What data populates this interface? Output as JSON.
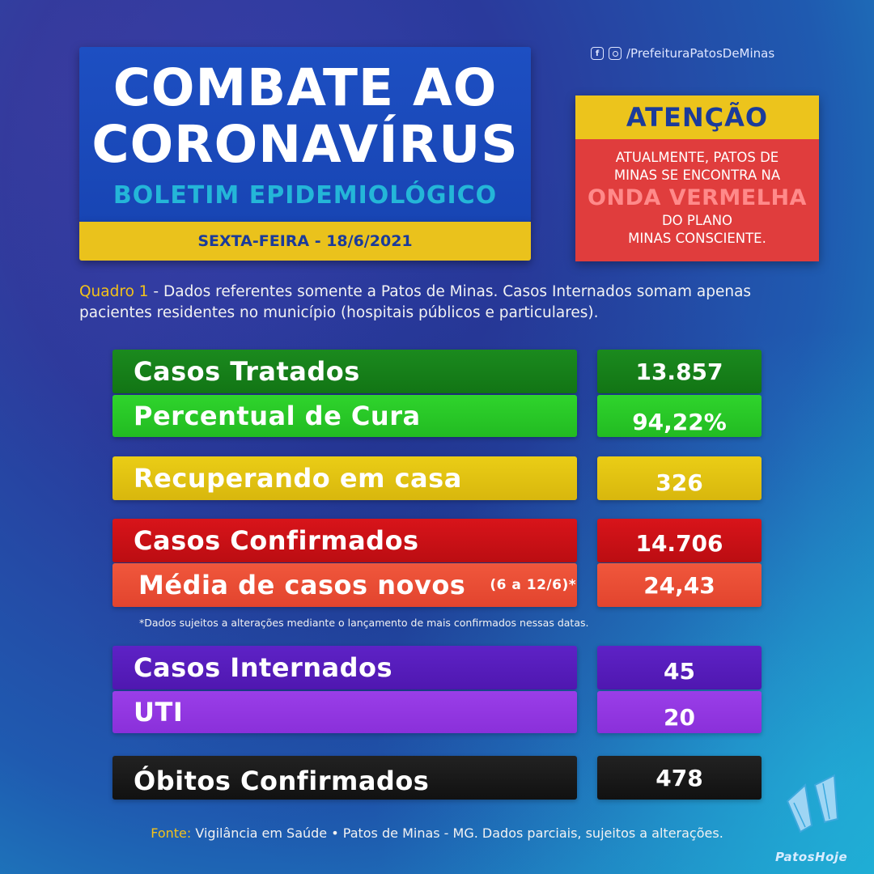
{
  "header": {
    "title_line1": "COMBATE AO",
    "title_line2": "CORONAVÍRUS",
    "subtitle": "BOLETIM EPIDEMIOLÓGICO",
    "date": "SEXTA-FEIRA - 18/6/2021"
  },
  "social": {
    "icons": [
      "facebook-icon",
      "instagram-icon"
    ],
    "handle": "/PrefeituraPatosDeMinas"
  },
  "attention": {
    "heading": "ATENÇÃO",
    "line1": "ATUALMENTE, PATOS DE",
    "line2": "MINAS SE ENCONTRA NA",
    "highlight": "ONDA VERMELHA",
    "line3": "DO PLANO",
    "line4": "MINAS CONSCIENTE."
  },
  "note": {
    "label": "Quadro 1",
    "text": " - Dados referentes somente a Patos de Minas. Casos Internados somam apenas pacientes residentes no município (hospitais públicos e particulares)."
  },
  "stats": {
    "casos_tratados": {
      "label": "Casos Tratados",
      "value": "13.857"
    },
    "percentual_cura": {
      "label": "Percentual de Cura",
      "value": "94,22%"
    },
    "recuperando": {
      "label": "Recuperando em casa",
      "value": "326"
    },
    "casos_confirmados": {
      "label": "Casos Confirmados",
      "value": "14.706"
    },
    "media_novos": {
      "label": "Média de casos novos",
      "period": "(6 a 12/6)*",
      "value": "24,43"
    },
    "casos_internados": {
      "label": "Casos Internados",
      "value": "45"
    },
    "uti": {
      "label": "UTI",
      "value": "20"
    },
    "obitos": {
      "label": "Óbitos Confirmados",
      "value": "478"
    }
  },
  "asterisk_note": "*Dados sujeitos a alterações mediante o lançamento de mais confirmados nessas datas.",
  "footer": {
    "label": "Fonte:",
    "text": " Vigilância em Saúde • Patos de Minas - MG. Dados parciais, sujeitos a alterações."
  },
  "brand": {
    "logo_icon": "flipper-icon",
    "name": "PatosHoje"
  },
  "colors": {
    "title_blue": "#1d4fc2",
    "yellow": "#eac21c",
    "green_dark": "#1b8a1e",
    "green_light": "#2fd42c",
    "red": "#d8141a",
    "orange_red": "#f0573c",
    "purple_dark": "#5e22c6",
    "purple_light": "#9a3ee8",
    "black": "#111111"
  }
}
